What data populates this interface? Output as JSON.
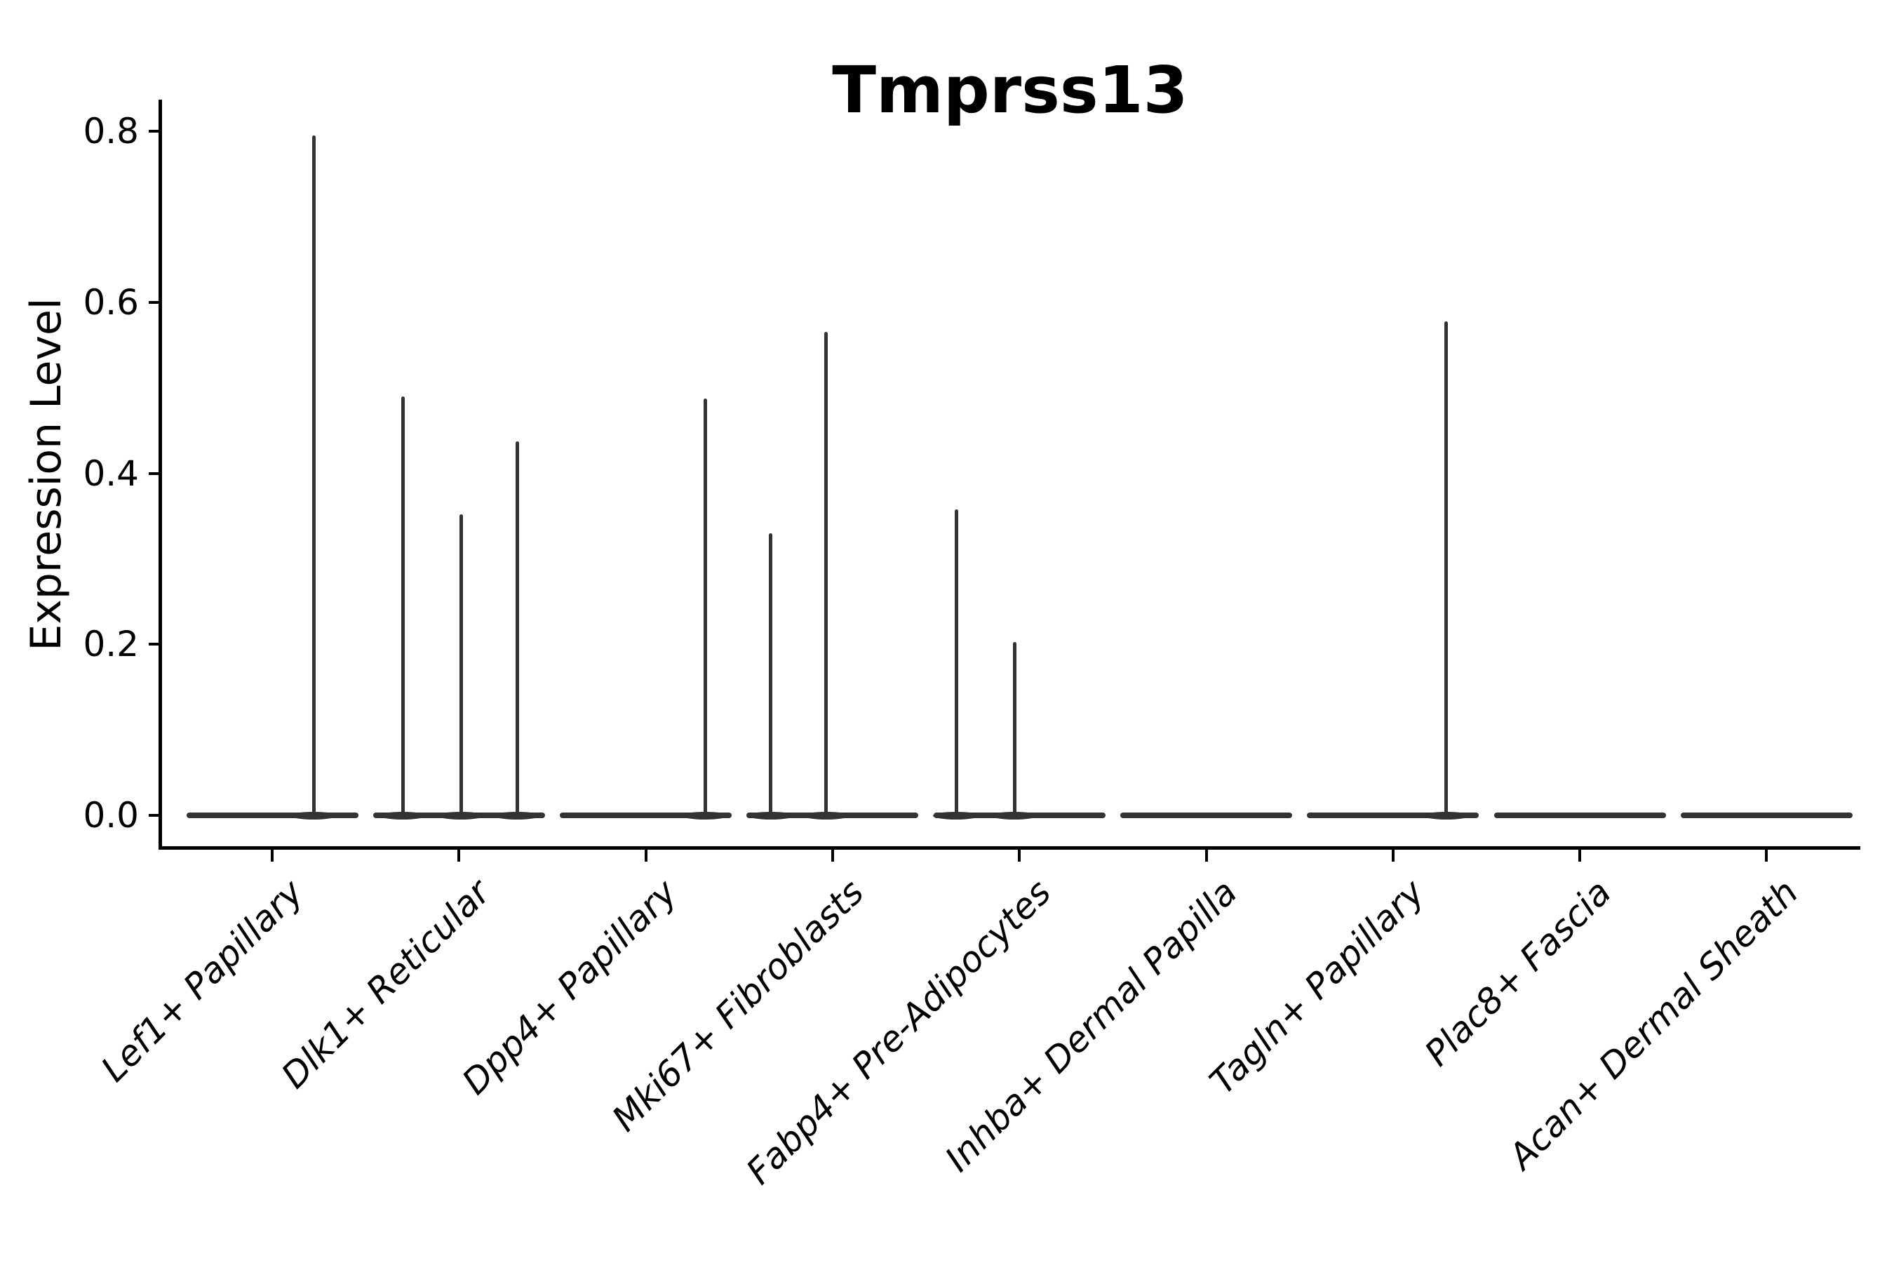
{
  "chart_data": {
    "type": "violin",
    "title": "Tmprss13",
    "ylabel": "Expression Level",
    "xlabel": "",
    "grid": false,
    "legend": "none",
    "ylim": [
      -0.038,
      0.837
    ],
    "ytick_labels": [
      "0.0",
      "0.2",
      "0.4",
      "0.6",
      "0.8"
    ],
    "ytick_values": [
      0.0,
      0.2,
      0.4,
      0.6,
      0.8
    ],
    "categories": [
      "Lef1+ Papillary",
      "Dlk1+ Reticular",
      "Dpp4+ Papillary",
      "Mki67+ Fibroblasts",
      "Fabp4+ Pre-Adipocytes",
      "Inhba+ Dermal Papilla",
      "Tagln+ Papillary",
      "Plac8+ Fascia",
      "Acan+ Dermal Sheath"
    ],
    "description": "Violin plot; every cell type has a flat collapsed violin at expression 0, with thin vertical density spikes for rare expressing cells.",
    "baseline_value": 0.0,
    "series": [
      {
        "name": "Lef1+ Papillary",
        "spikes": [
          {
            "offset": 0.222,
            "value": 0.795
          }
        ]
      },
      {
        "name": "Dlk1+ Reticular",
        "spikes": [
          {
            "offset": -0.301,
            "value": 0.49
          },
          {
            "offset": 0.011,
            "value": 0.352
          },
          {
            "offset": 0.312,
            "value": 0.437
          }
        ]
      },
      {
        "name": "Dpp4+ Papillary",
        "spikes": [
          {
            "offset": 0.318,
            "value": 0.487
          }
        ]
      },
      {
        "name": "Mki67+ Fibroblasts",
        "spikes": [
          {
            "offset": -0.331,
            "value": 0.33
          },
          {
            "offset": -0.034,
            "value": 0.565
          }
        ]
      },
      {
        "name": "Fabp4+ Pre-Adipocytes",
        "spikes": [
          {
            "offset": -0.338,
            "value": 0.358
          },
          {
            "offset": -0.026,
            "value": 0.203
          }
        ]
      },
      {
        "name": "Inhba+ Dermal Papilla",
        "spikes": []
      },
      {
        "name": "Tagln+ Papillary",
        "spikes": [
          {
            "offset": 0.286,
            "value": 0.578
          }
        ]
      },
      {
        "name": "Plac8+ Fascia",
        "spikes": []
      },
      {
        "name": "Acan+ Dermal Sheath",
        "spikes": []
      }
    ],
    "colors": {
      "violin": "#333333",
      "axis": "#000000",
      "text": "#000000",
      "background": "#ffffff"
    }
  }
}
